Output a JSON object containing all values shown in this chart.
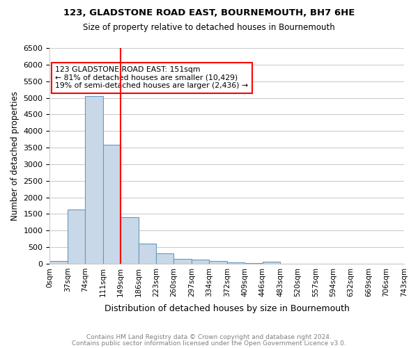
{
  "title1": "123, GLADSTONE ROAD EAST, BOURNEMOUTH, BH7 6HE",
  "title2": "Size of property relative to detached houses in Bournemouth",
  "xlabel": "Distribution of detached houses by size in Bournemouth",
  "ylabel": "Number of detached properties",
  "footnote1": "Contains HM Land Registry data © Crown copyright and database right 2024.",
  "footnote2": "Contains public sector information licensed under the Open Government Licence v3.0.",
  "bin_labels": [
    "0sqm",
    "37sqm",
    "74sqm",
    "111sqm",
    "149sqm",
    "186sqm",
    "223sqm",
    "260sqm",
    "297sqm",
    "334sqm",
    "372sqm",
    "409sqm",
    "446sqm",
    "483sqm",
    "520sqm",
    "557sqm",
    "594sqm",
    "632sqm",
    "669sqm",
    "706sqm",
    "743sqm"
  ],
  "bar_values": [
    75,
    1625,
    5050,
    3575,
    1400,
    610,
    305,
    155,
    120,
    90,
    45,
    25,
    55,
    0,
    0,
    0,
    0,
    0,
    0,
    0
  ],
  "bar_color": "#c8d8e8",
  "bar_edge_color": "#6699bb",
  "vline_x": 4.0,
  "vline_color": "red",
  "annotation_text": "123 GLADSTONE ROAD EAST: 151sqm\n← 81% of detached houses are smaller (10,429)\n19% of semi-detached houses are larger (2,436) →",
  "annotation_box_color": "white",
  "annotation_box_edge": "red",
  "ylim": [
    0,
    6500
  ],
  "yticks": [
    0,
    500,
    1000,
    1500,
    2000,
    2500,
    3000,
    3500,
    4000,
    4500,
    5000,
    5500,
    6000,
    6500
  ],
  "grid_color": "#cccccc",
  "bg_color": "white"
}
